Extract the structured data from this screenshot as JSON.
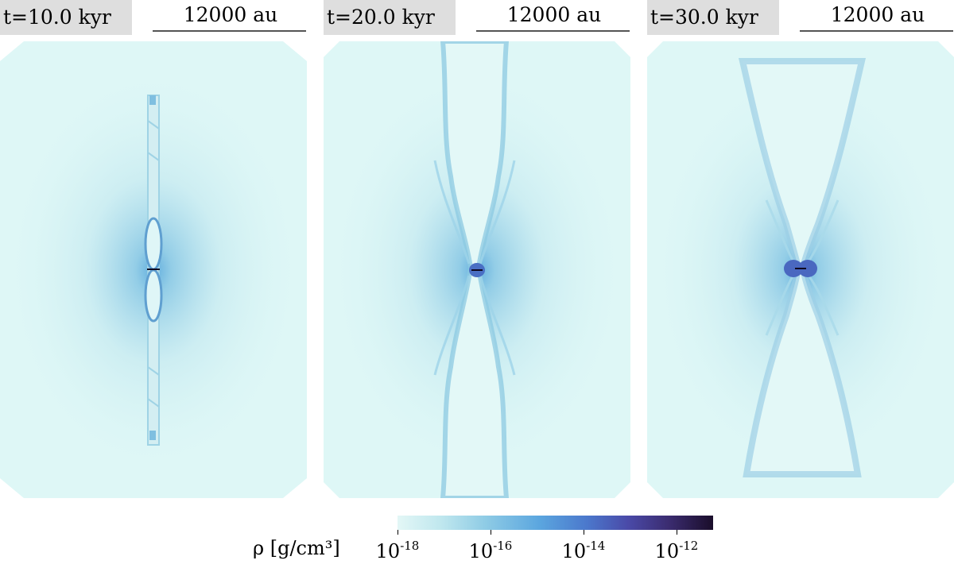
{
  "panels": [
    {
      "time_label": "t=10.0 kyr",
      "scale_label": "12000 au"
    },
    {
      "time_label": "t=20.0 kyr",
      "scale_label": "12000 au"
    },
    {
      "time_label": "t=30.0 kyr",
      "scale_label": "12000 au"
    }
  ],
  "colorbar": {
    "label": "ρ [g/cm³]",
    "ticks": [
      {
        "base": "10",
        "exp": "-18"
      },
      {
        "base": "10",
        "exp": "-16"
      },
      {
        "base": "10",
        "exp": "-14"
      },
      {
        "base": "10",
        "exp": "-12"
      }
    ]
  },
  "colors": {
    "background_fluid": "#def7f6",
    "mid_density": "#8cc9e2",
    "high_density": "#4a6fc4",
    "peak_density": "#0f0820",
    "label_box": "#dedede"
  }
}
